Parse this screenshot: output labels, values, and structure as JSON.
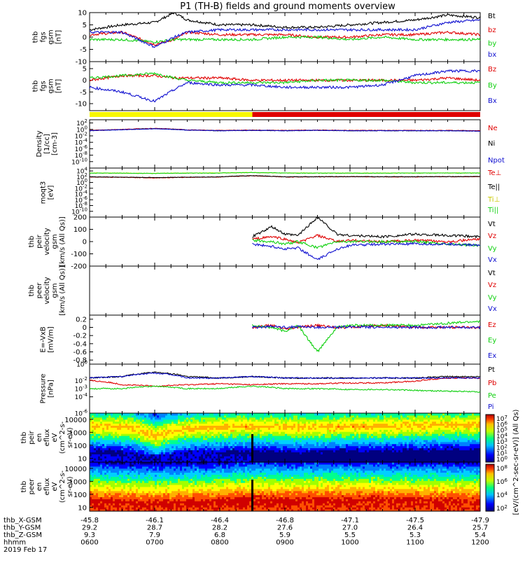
{
  "title": "P1 (TH-B) fields and ground moments overview",
  "date_label": "2019 Feb 17",
  "orbit_table": {
    "rows": [
      {
        "label": "thb_X-GSM",
        "values": [
          "-45.8",
          "-46.1",
          "-46.4",
          "-46.8",
          "-47.1",
          "-47.5",
          "-47.9"
        ]
      },
      {
        "label": "thb_Y-GSM",
        "values": [
          "29.2",
          "28.7",
          "28.2",
          "27.6",
          "27.0",
          "26.4",
          "25.7"
        ]
      },
      {
        "label": "thb_Z-GSM",
        "values": [
          "9.3",
          "7.9",
          "6.8",
          "5.9",
          "5.5",
          "5.3",
          "5.4"
        ]
      },
      {
        "label": "hhmm",
        "values": [
          "0600",
          "0700",
          "0800",
          "0900",
          "1000",
          "1100",
          "1200"
        ]
      }
    ]
  },
  "colors": {
    "black": "#000000",
    "red": "#e00000",
    "green": "#10d010",
    "blue": "#1010d0",
    "yellow": "#f8f800",
    "bar_red": "#e00000"
  },
  "state_bar": {
    "segments": [
      {
        "from_hour": 6.0,
        "to_hour": 8.5,
        "color": "yellow"
      },
      {
        "from_hour": 8.5,
        "to_hour": 12.0,
        "color": "red"
      }
    ]
  },
  "spectrogram_colorbar": {
    "label": "[eV/(cm^2-sec-sr-eV)] (All Qs)",
    "ion_ticks": [
      "10^7",
      "10^6",
      "10^5",
      "10^4",
      "10^3",
      "10^2",
      "10^1",
      "10^0"
    ],
    "electron_ticks": [
      "10^8",
      "10^6",
      "10^4",
      "10^2"
    ]
  },
  "chart_data": [
    {
      "type": "line",
      "id": "fgs_gsm",
      "ylabel": [
        "thb",
        "fgs",
        "gsm",
        "[nT]"
      ],
      "ylim": [
        -10,
        10
      ],
      "yticks": [
        10,
        5,
        0,
        -5,
        -10
      ],
      "series": [
        {
          "name": "Bt",
          "color": "black"
        },
        {
          "name": "bz",
          "color": "red"
        },
        {
          "name": "by",
          "color": "green"
        },
        {
          "name": "bx",
          "color": "blue"
        }
      ],
      "x": [
        6.0,
        6.5,
        7.0,
        7.3,
        7.5,
        8.0,
        8.5,
        9.0,
        9.5,
        10.0,
        10.5,
        11.0,
        11.5,
        12.0
      ],
      "values": {
        "Bt": [
          3,
          5,
          6,
          10,
          7,
          5,
          5,
          4,
          4,
          5,
          6,
          7,
          9,
          8
        ],
        "bz": [
          1,
          2,
          -3,
          -1,
          2,
          1,
          1,
          1,
          0,
          0,
          1,
          1,
          2,
          1
        ],
        "by": [
          -1,
          -1,
          -2,
          -1,
          -1,
          -1,
          -1,
          0,
          0,
          -1,
          0,
          -1,
          -1,
          -1
        ],
        "bx": [
          2,
          2,
          -4,
          0,
          2,
          3,
          3,
          3,
          3,
          3,
          3,
          3,
          6,
          7
        ]
      }
    },
    {
      "type": "line",
      "id": "fgs_gse",
      "ylabel": [
        "thb",
        "fgs",
        "gsm",
        "[nT]"
      ],
      "ylim": [
        -13,
        8
      ],
      "yticks": [
        5,
        0,
        -5,
        -10
      ],
      "series": [
        {
          "name": "Bz",
          "color": "red"
        },
        {
          "name": "By",
          "color": "green"
        },
        {
          "name": "Bx",
          "color": "blue"
        }
      ],
      "x": [
        6.0,
        6.5,
        7.0,
        7.3,
        7.5,
        8.0,
        8.5,
        9.0,
        9.5,
        10.0,
        10.5,
        11.0,
        11.5,
        12.0
      ],
      "values": {
        "Bz": [
          0,
          2,
          2,
          1,
          1,
          1,
          0,
          0,
          0,
          0,
          0,
          0,
          1,
          0
        ],
        "By": [
          1,
          2,
          3,
          1,
          0,
          -1,
          -1,
          -1,
          0,
          0,
          0,
          -1,
          -1,
          -1
        ],
        "Bx": [
          -3,
          -5,
          -9,
          -4,
          -1,
          -2,
          -2,
          -3,
          -3,
          -3,
          -2,
          2,
          4,
          4
        ]
      }
    },
    {
      "type": "line",
      "id": "density",
      "ylog": true,
      "ylabel": [
        "Density",
        "[1/cc]",
        "[cm-3]"
      ],
      "ylim_exp": [
        -12,
        3
      ],
      "yticks_exp": [
        2,
        0,
        -2,
        -4,
        -6,
        -8,
        -10
      ],
      "series": [
        {
          "name": "Ne",
          "color": "red"
        },
        {
          "name": "Ni",
          "color": "black"
        },
        {
          "name": "Npot",
          "color": "blue"
        }
      ],
      "x": [
        6.0,
        6.5,
        7.0,
        7.5,
        8.0,
        8.5,
        9.0,
        9.5,
        10.0,
        10.5,
        11.0,
        11.5,
        12.0
      ],
      "values": {
        "Ne": [
          0.5,
          1,
          2,
          0.7,
          0.5,
          0.6,
          0.5,
          0.6,
          0.5,
          0.5,
          0.5,
          0.5,
          0.4
        ],
        "Ni": [
          0.4,
          0.8,
          1.7,
          0.6,
          0.4,
          0.5,
          0.4,
          0.5,
          0.4,
          0.4,
          0.4,
          0.4,
          0.3
        ],
        "Npot": [
          0.4,
          0.8,
          1.5,
          0.6,
          0.4,
          0.5,
          0.4,
          0.5,
          0.4,
          0.4,
          0.4,
          0.4,
          0.3
        ]
      }
    },
    {
      "type": "line",
      "id": "temperature",
      "ylog": true,
      "ylabel": [
        "moqt3",
        "[eV]"
      ],
      "ylim_exp": [
        -12,
        5
      ],
      "yticks_exp": [
        4,
        2,
        0,
        -2,
        -4,
        -6,
        -8,
        -10
      ],
      "series": [
        {
          "name": "Te⊥",
          "color": "red"
        },
        {
          "name": "Te||",
          "color": "black"
        },
        {
          "name": "Ti⊥",
          "color": "yellow"
        },
        {
          "name": "Ti||",
          "color": "green"
        }
      ],
      "x": [
        6.0,
        6.5,
        7.0,
        7.5,
        8.0,
        8.5,
        9.0,
        9.5,
        10.0,
        10.5,
        11.0,
        11.5,
        12.0
      ],
      "values": {
        "Te⊥": [
          80,
          60,
          40,
          60,
          80,
          200,
          80,
          90,
          100,
          90,
          90,
          100,
          100
        ],
        "Te||": [
          90,
          70,
          50,
          70,
          90,
          220,
          90,
          100,
          110,
          100,
          100,
          110,
          110
        ],
        "Ti⊥": [
          2000,
          1800,
          1500,
          1800,
          2000,
          3000,
          2000,
          1800,
          1800,
          1800,
          1900,
          2000,
          2000
        ],
        "Ti||": [
          1800,
          1700,
          1400,
          1700,
          1900,
          2800,
          1900,
          1700,
          1700,
          1700,
          1800,
          1900,
          1900
        ]
      }
    },
    {
      "type": "line",
      "id": "velocity",
      "ylabel": [
        "thb",
        "peir",
        "velocity",
        "gsm",
        "[km/s (All Qs)]"
      ],
      "ylim": [
        -200,
        200
      ],
      "yticks": [
        200,
        100,
        0,
        -100,
        -200
      ],
      "series": [
        {
          "name": "Vt",
          "color": "black"
        },
        {
          "name": "Vz",
          "color": "red"
        },
        {
          "name": "Vy",
          "color": "green"
        },
        {
          "name": "Vx",
          "color": "blue"
        }
      ],
      "x": [
        8.5,
        8.8,
        9.0,
        9.2,
        9.5,
        9.8,
        10.0,
        10.5,
        11.0,
        11.5,
        12.0
      ],
      "values": {
        "Vt": [
          40,
          120,
          60,
          50,
          200,
          60,
          50,
          40,
          60,
          50,
          40
        ],
        "Vz": [
          20,
          40,
          20,
          -10,
          50,
          0,
          10,
          0,
          10,
          0,
          20
        ],
        "Vy": [
          10,
          0,
          -20,
          0,
          -50,
          0,
          0,
          0,
          0,
          -20,
          -30
        ],
        "Vx": [
          -20,
          -40,
          -60,
          -50,
          -150,
          -60,
          -30,
          -20,
          -20,
          -20,
          -30
        ]
      }
    },
    {
      "type": "line",
      "id": "velocity_e",
      "ylabel": [
        "thb",
        "peer",
        "velocity",
        "gsm",
        "[km/s (All Qs)]"
      ],
      "series": [
        {
          "name": "Vt",
          "color": "black"
        },
        {
          "name": "Vz",
          "color": "red"
        },
        {
          "name": "Vy",
          "color": "green"
        },
        {
          "name": "Vx",
          "color": "blue"
        }
      ],
      "x": [],
      "values": {}
    },
    {
      "type": "line",
      "id": "efield",
      "ylabel": [
        "E=-VxB",
        "[mV/m]"
      ],
      "ylim": [
        -0.9,
        0.3
      ],
      "yticks": [
        0.2,
        0.0,
        -0.2,
        -0.4,
        -0.6,
        -0.8
      ],
      "series": [
        {
          "name": "Ez",
          "color": "red"
        },
        {
          "name": "Ey",
          "color": "green"
        },
        {
          "name": "Ex",
          "color": "blue"
        }
      ],
      "x": [
        8.5,
        8.8,
        9.0,
        9.2,
        9.5,
        9.8,
        10.0,
        10.5,
        11.0,
        11.5,
        12.0
      ],
      "values": {
        "Ez": [
          0.0,
          0.05,
          -0.05,
          0.0,
          0.05,
          0.0,
          0.0,
          0.05,
          0.0,
          0.0,
          0.0
        ],
        "Ey": [
          0.05,
          0.0,
          -0.1,
          0.05,
          -0.6,
          0.0,
          0.05,
          0.05,
          0.05,
          0.1,
          0.15
        ],
        "Ex": [
          0.0,
          0.02,
          0.0,
          0.02,
          0.0,
          0.0,
          0.02,
          0.0,
          0.0,
          0.0,
          0.0
        ]
      }
    },
    {
      "type": "line",
      "id": "pressure",
      "ylog": true,
      "ylabel": [
        "Pressure",
        "[nPa]"
      ],
      "ylim_exp": [
        -6,
        0
      ],
      "yticks_exp": [
        0,
        -2,
        -3,
        -4,
        -6
      ],
      "series": [
        {
          "name": "Pt",
          "color": "black"
        },
        {
          "name": "Pb",
          "color": "red"
        },
        {
          "name": "Pe",
          "color": "green"
        },
        {
          "name": "Pi",
          "color": "blue"
        }
      ],
      "x": [
        6.0,
        6.5,
        7.0,
        7.5,
        8.0,
        8.5,
        9.0,
        9.5,
        10.0,
        10.5,
        11.0,
        11.5,
        12.0
      ],
      "values": {
        "Pt": [
          0.02,
          0.03,
          0.1,
          0.03,
          0.02,
          0.03,
          0.02,
          0.02,
          0.02,
          0.02,
          0.02,
          0.03,
          0.03
        ],
        "Pb": [
          0.01,
          0.003,
          0.002,
          0.003,
          0.004,
          0.003,
          0.004,
          0.004,
          0.005,
          0.005,
          0.008,
          0.02,
          0.02
        ],
        "Pe": [
          0.001,
          0.001,
          0.002,
          0.001,
          0.001,
          0.002,
          0.001,
          0.001,
          0.0008,
          0.0008,
          0.0006,
          0.0005,
          0.0004
        ],
        "Pi": [
          0.02,
          0.03,
          0.08,
          0.02,
          0.02,
          0.03,
          0.02,
          0.02,
          0.02,
          0.02,
          0.02,
          0.02,
          0.02
        ]
      }
    },
    {
      "type": "heatmap",
      "id": "ion_spec",
      "ylog": true,
      "ylabel": [
        "thb",
        "peir",
        "en",
        "eflux",
        "eV",
        "(cm^2-s-",
        "sr-eV)"
      ],
      "yticks": [
        10000,
        1000,
        100,
        10
      ],
      "ylim": [
        5,
        30000
      ],
      "x": [
        6.0,
        6.5,
        7.0,
        7.5,
        8.0,
        8.5,
        9.0,
        9.5,
        10.0,
        10.5,
        11.0,
        11.5,
        12.0
      ],
      "peak_energy_eV": [
        3000,
        2500,
        500,
        2000,
        2500,
        3000,
        2500,
        2500,
        3000,
        3000,
        3500,
        4000,
        4000
      ]
    },
    {
      "type": "heatmap",
      "id": "electron_spec",
      "ylog": true,
      "ylabel": [
        "thb",
        "peer",
        "en",
        "eflux",
        "eV",
        "(cm^2-s-",
        "sr-eV)"
      ],
      "yticks": [
        10000,
        1000,
        100,
        10
      ],
      "ylim": [
        5,
        30000
      ],
      "x": [
        6.0,
        6.5,
        7.0,
        7.5,
        8.0,
        8.5,
        9.0,
        9.5,
        10.0,
        10.5,
        11.0,
        11.5,
        12.0
      ],
      "peak_energy_eV": [
        30,
        25,
        20,
        25,
        30,
        40,
        35,
        40,
        40,
        35,
        35,
        30,
        30
      ]
    }
  ]
}
